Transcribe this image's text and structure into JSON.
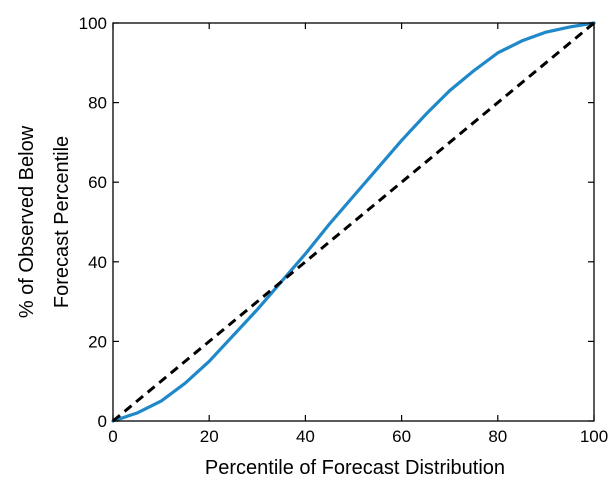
{
  "chart_data": {
    "type": "line",
    "title": "",
    "xlabel": "Percentile of Forecast Distribution",
    "ylabel_lines": [
      "% of Observed Below",
      "Forecast Percentile"
    ],
    "xlim": [
      0,
      100
    ],
    "ylim": [
      0,
      100
    ],
    "xticks": [
      0,
      20,
      40,
      60,
      80,
      100
    ],
    "yticks": [
      0,
      20,
      40,
      60,
      80,
      100
    ],
    "grid": false,
    "legend": "none",
    "series": [
      {
        "style": "solid",
        "color": "#1f88c9",
        "x": [
          0,
          5,
          10,
          15,
          20,
          25,
          30,
          35,
          40,
          45,
          50,
          55,
          60,
          65,
          70,
          75,
          80,
          85,
          90,
          95,
          100
        ],
        "y": [
          0,
          2,
          5,
          9.5,
          15,
          21.5,
          28,
          35,
          42,
          49.5,
          56.5,
          63.5,
          70.5,
          77,
          83,
          88,
          92.5,
          95.5,
          97.7,
          99,
          100
        ]
      },
      {
        "style": "dashed",
        "color": "#000000",
        "x": [
          0,
          100
        ],
        "y": [
          0,
          100
        ]
      }
    ]
  }
}
